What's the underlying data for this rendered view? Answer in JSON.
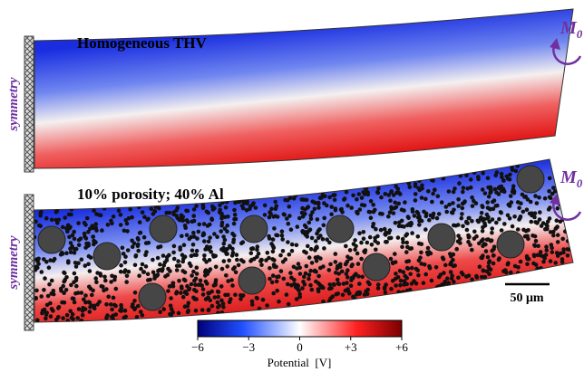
{
  "figure": {
    "panels": [
      {
        "title": "Homogeneous THV",
        "side_label": "symmetry",
        "moment_label": "M",
        "moment_subscript": "0"
      },
      {
        "title": "10% porosity; 40% Al",
        "side_label": "symmetry",
        "moment_label": "M",
        "moment_subscript": "0"
      }
    ],
    "colorbar": {
      "label": "Potential  [V]",
      "range": [
        -6,
        6
      ],
      "ticks": [
        {
          "value": -6,
          "label": "−6"
        },
        {
          "value": -3,
          "label": "−3"
        },
        0,
        {
          "value": 3,
          "label": "+3"
        },
        {
          "value": 6,
          "label": "+6"
        }
      ]
    },
    "scale_bar": "50 μm"
  }
}
